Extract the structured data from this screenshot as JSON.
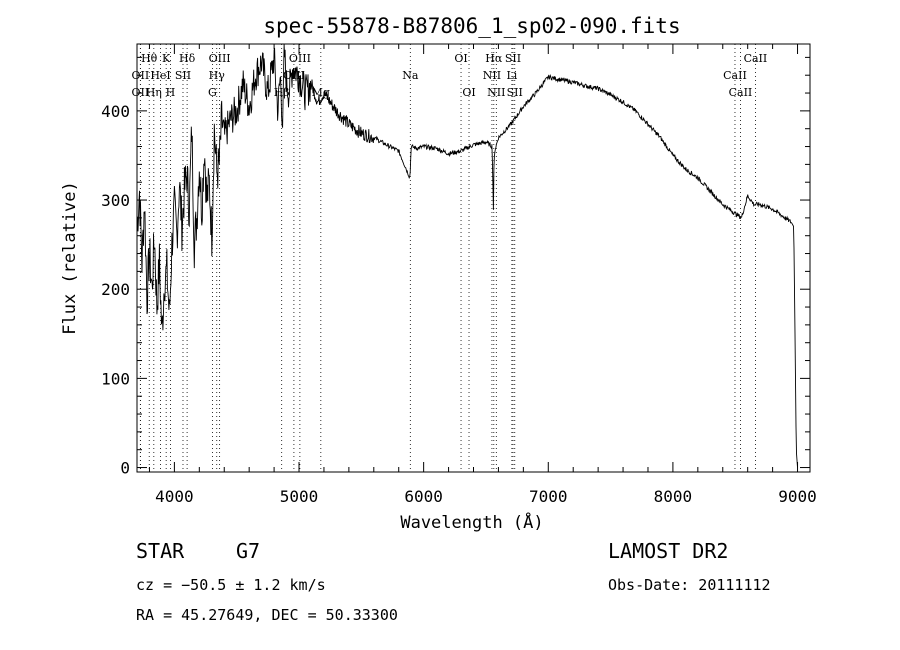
{
  "chart_data": {
    "type": "line",
    "title": "spec-55878-B87806_1_sp02-090.fits",
    "xlabel": "Wavelength (Å)",
    "ylabel": "Flux (relative)",
    "xlim": [
      3700,
      9100
    ],
    "ylim": [
      -5,
      475
    ],
    "x_ticks": [
      4000,
      5000,
      6000,
      7000,
      8000,
      9000
    ],
    "y_ticks": [
      0,
      100,
      200,
      300,
      400
    ],
    "grid": false,
    "legend": "none",
    "series": [
      {
        "x": [
          3700,
          3720,
          3740,
          3760,
          3780,
          3800,
          3820,
          3840,
          3860,
          3880,
          3900,
          3920,
          3940,
          3960,
          3980,
          4000,
          4020,
          4040,
          4060,
          4080,
          4100,
          4120,
          4140,
          4160,
          4180,
          4200,
          4220,
          4240,
          4260,
          4280,
          4300,
          4320,
          4340,
          4360,
          4380,
          4400,
          4450,
          4500,
          4550,
          4600,
          4650,
          4700,
          4750,
          4800,
          4830,
          4850,
          4870,
          4880,
          4900,
          4920,
          4950,
          5000,
          5050,
          5100,
          5150,
          5200,
          5300,
          5400,
          5500,
          5600,
          5700,
          5800,
          5890,
          5900,
          5950,
          6000,
          6100,
          6200,
          6300,
          6400,
          6500,
          6550,
          6560,
          6563,
          6570,
          6600,
          6700,
          6800,
          6900,
          7000,
          7100,
          7200,
          7300,
          7400,
          7500,
          7600,
          7700,
          7800,
          7900,
          8000,
          8100,
          8200,
          8300,
          8400,
          8500,
          8550,
          8600,
          8650,
          8700,
          8800,
          8900,
          8950,
          8970,
          8980,
          8990,
          9000
        ],
        "y": [
          270,
          310,
          230,
          300,
          190,
          240,
          200,
          260,
          180,
          230,
          150,
          210,
          220,
          170,
          250,
          290,
          260,
          320,
          270,
          310,
          330,
          290,
          380,
          250,
          280,
          340,
          290,
          360,
          300,
          320,
          260,
          380,
          330,
          340,
          390,
          370,
          390,
          400,
          430,
          405,
          440,
          455,
          420,
          460,
          400,
          440,
          380,
          470,
          430,
          420,
          450,
          440,
          420,
          430,
          410,
          420,
          400,
          385,
          375,
          370,
          362,
          355,
          325,
          360,
          358,
          360,
          358,
          352,
          355,
          362,
          365,
          360,
          290,
          330,
          355,
          370,
          385,
          405,
          420,
          438,
          435,
          432,
          428,
          425,
          418,
          410,
          400,
          385,
          370,
          350,
          335,
          325,
          310,
          295,
          285,
          280,
          305,
          295,
          295,
          290,
          280,
          275,
          270,
          150,
          20,
          0
        ]
      }
    ],
    "line_markers": [
      {
        "label": "Hθ",
        "x": 3798,
        "row": 1
      },
      {
        "label": "K",
        "x": 3934,
        "row": 1
      },
      {
        "label": "Hδ",
        "x": 4102,
        "row": 1
      },
      {
        "label": "OII",
        "x": 3727,
        "row": 2
      },
      {
        "label": "HeI",
        "x": 3889,
        "row": 2
      },
      {
        "label": "SII",
        "x": 4069,
        "row": 2
      },
      {
        "label": "OII",
        "x": 3727,
        "row": 3
      },
      {
        "label": "Hη",
        "x": 3835,
        "row": 3
      },
      {
        "label": "H",
        "x": 3968,
        "row": 3
      },
      {
        "label": "OIII",
        "x": 4363,
        "row": 1
      },
      {
        "label": "Hγ",
        "x": 4340,
        "row": 2
      },
      {
        "label": "G",
        "x": 4305,
        "row": 3
      },
      {
        "label": "OIII",
        "x": 5007,
        "row": 1
      },
      {
        "label": "OIII",
        "x": 4959,
        "row": 2
      },
      {
        "label": "Hβ",
        "x": 4861,
        "row": 3
      },
      {
        "label": "Mg",
        "x": 5175,
        "row": 3
      },
      {
        "label": "Na",
        "x": 5893,
        "row": 2
      },
      {
        "label": "OI",
        "x": 6300,
        "row": 1
      },
      {
        "label": "OI",
        "x": 6364,
        "row": 3
      },
      {
        "label": "Hα",
        "x": 6563,
        "row": 1
      },
      {
        "label": "SII",
        "x": 6717,
        "row": 1
      },
      {
        "label": "NII",
        "x": 6548,
        "row": 2
      },
      {
        "label": "Li",
        "x": 6708,
        "row": 2
      },
      {
        "label": "NII",
        "x": 6583,
        "row": 3
      },
      {
        "label": "SII",
        "x": 6731,
        "row": 3
      },
      {
        "label": "CaII",
        "x": 8662,
        "row": 1
      },
      {
        "label": "CaII",
        "x": 8498,
        "row": 2
      },
      {
        "label": "CaII",
        "x": 8542,
        "row": 3
      }
    ]
  },
  "info": {
    "object_class": "STAR",
    "subclass": "G7",
    "cz": "cz = −50.5 ± 1.2 km/s",
    "coords": "RA =  45.27649, DEC =  50.33300",
    "survey": "LAMOST DR2",
    "obs_date": "Obs-Date: 20111112"
  }
}
